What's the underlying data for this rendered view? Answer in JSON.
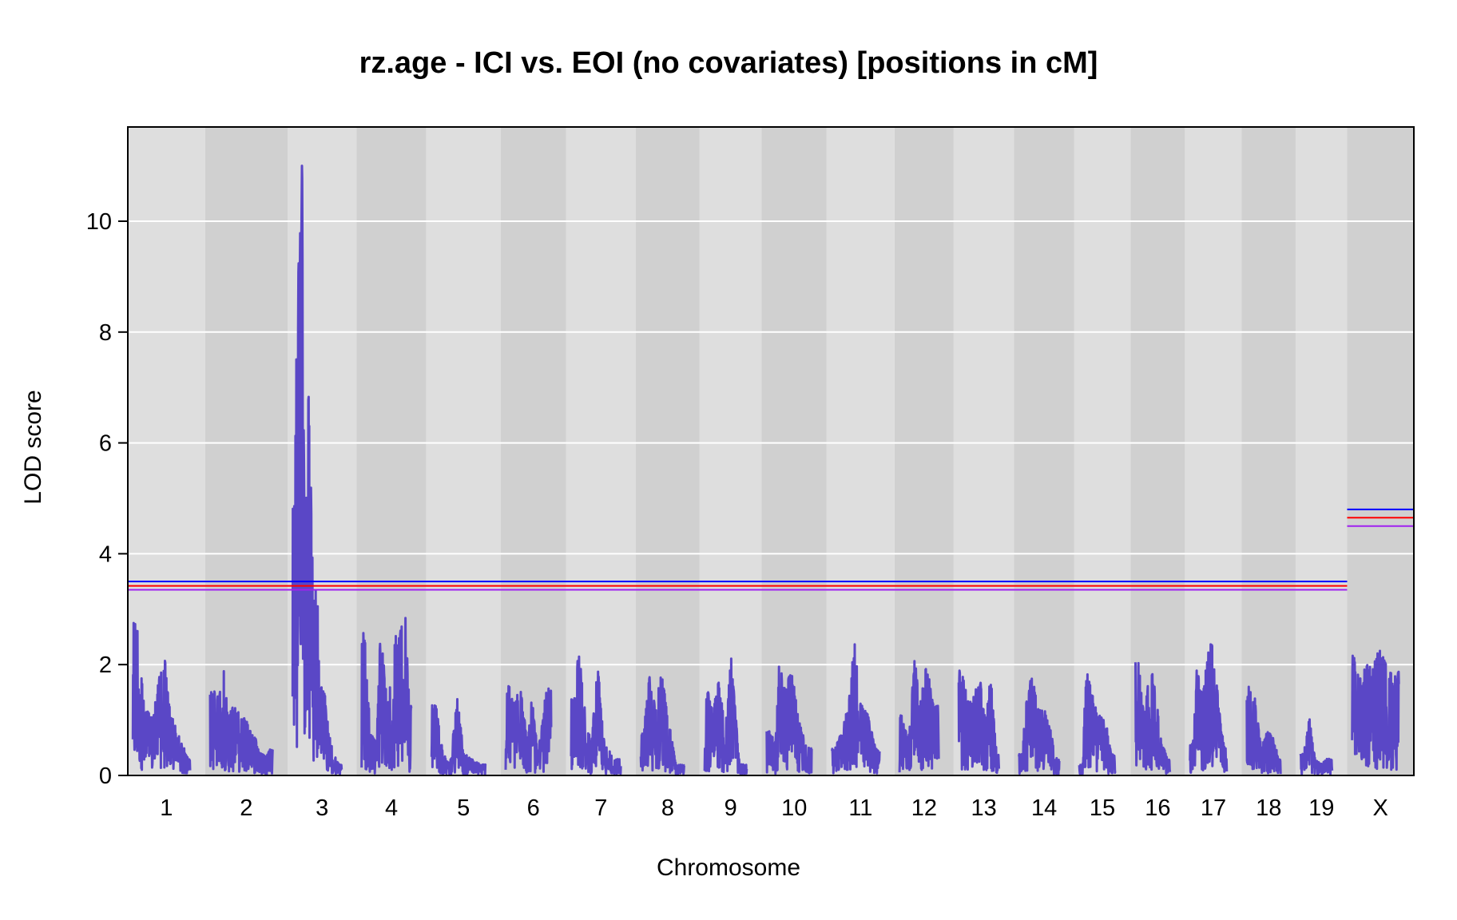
{
  "chart_data": {
    "type": "line",
    "title": "rz.age - ICI vs. EOI (no covariates) [positions in cM]",
    "xlabel": "Chromosome",
    "ylabel": "LOD score",
    "ylim": [
      0,
      11.7
    ],
    "yticks": [
      0,
      2,
      4,
      6,
      8,
      10
    ],
    "grid": "horizontal at y ticks",
    "background": "alternating gray bands per chromosome",
    "colors": {
      "lod_curve": "#5a47c6",
      "band_light": "#dedede",
      "band_dark": "#d0d0d0",
      "grid": "#ffffff",
      "threshold_blue": "#0000ff",
      "threshold_red": "#ff0000",
      "threshold_purple": "#9f20f0"
    },
    "chromosomes": [
      "1",
      "2",
      "3",
      "4",
      "5",
      "6",
      "7",
      "8",
      "9",
      "10",
      "11",
      "12",
      "13",
      "14",
      "15",
      "16",
      "17",
      "18",
      "19",
      "X"
    ],
    "chromosome_lengths_cM": [
      98,
      107,
      84,
      85,
      93,
      78,
      85,
      75,
      72,
      77,
      82,
      67,
      69,
      69,
      62,
      59,
      63,
      58,
      54,
      80
    ],
    "series": [
      {
        "label_by_chromosome": [
          {
            "chr": "1",
            "peaks": [
              [
                3,
                2.8
              ],
              [
                8,
                2.9
              ],
              [
                12,
                2.5
              ],
              [
                20,
                1.2
              ],
              [
                35,
                1.1
              ],
              [
                48,
                2.0
              ],
              [
                55,
                2.1
              ],
              [
                62,
                1.3
              ],
              [
                75,
                0.8
              ],
              [
                88,
                0.5
              ],
              [
                95,
                0.3
              ]
            ]
          },
          {
            "chr": "2",
            "peaks": [
              [
                5,
                1.7
              ],
              [
                15,
                1.4
              ],
              [
                22,
                2.3
              ],
              [
                30,
                1.1
              ],
              [
                42,
                1.3
              ],
              [
                55,
                1.1
              ],
              [
                65,
                1.0
              ],
              [
                75,
                0.8
              ],
              [
                85,
                0.4
              ],
              [
                98,
                0.4
              ],
              [
                104,
                0.5
              ]
            ]
          },
          {
            "chr": "3",
            "peaks": [
              [
                2,
                5.0
              ],
              [
                6,
                7.7
              ],
              [
                10,
                9.4
              ],
              [
                14,
                10.9
              ],
              [
                16,
                11.2
              ],
              [
                18,
                10.5
              ],
              [
                20,
                9.4
              ],
              [
                24,
                8.0
              ],
              [
                28,
                6.7
              ],
              [
                32,
                5.0
              ],
              [
                36,
                3.3
              ],
              [
                42,
                3.5
              ],
              [
                46,
                1.8
              ],
              [
                50,
                1.6
              ],
              [
                55,
                1.5
              ],
              [
                62,
                0.8
              ],
              [
                70,
                0.4
              ],
              [
                80,
                0.2
              ]
            ]
          },
          {
            "chr": "4",
            "peaks": [
              [
                5,
                2.6
              ],
              [
                15,
                0.8
              ],
              [
                25,
                0.6
              ],
              [
                32,
                2.6
              ],
              [
                45,
                1.3
              ],
              [
                55,
                2.4
              ],
              [
                62,
                2.7
              ],
              [
                68,
                2.9
              ],
              [
                75,
                2.9
              ],
              [
                82,
                1.3
              ]
            ]
          },
          {
            "chr": "5",
            "peaks": [
              [
                8,
                1.3
              ],
              [
                20,
                0.4
              ],
              [
                32,
                0.2
              ],
              [
                45,
                1.5
              ],
              [
                55,
                0.4
              ],
              [
                70,
                0.3
              ],
              [
                85,
                0.2
              ]
            ]
          },
          {
            "chr": "6",
            "peaks": [
              [
                5,
                1.7
              ],
              [
                15,
                1.3
              ],
              [
                25,
                1.7
              ],
              [
                38,
                0.6
              ],
              [
                45,
                1.5
              ],
              [
                55,
                0.4
              ],
              [
                70,
                1.6
              ]
            ]
          },
          {
            "chr": "7",
            "peaks": [
              [
                8,
                1.4
              ],
              [
                12,
                2.5
              ],
              [
                25,
                1.0
              ],
              [
                35,
                0.6
              ],
              [
                45,
                2.1
              ],
              [
                55,
                0.7
              ],
              [
                72,
                0.3
              ]
            ]
          },
          {
            "chr": "8",
            "peaks": [
              [
                5,
                0.8
              ],
              [
                15,
                1.9
              ],
              [
                25,
                1.2
              ],
              [
                35,
                1.9
              ],
              [
                48,
                1.0
              ],
              [
                60,
                0.2
              ]
            ]
          },
          {
            "chr": "9",
            "peaks": [
              [
                5,
                1.6
              ],
              [
                15,
                1.2
              ],
              [
                25,
                1.8
              ],
              [
                35,
                0.8
              ],
              [
                45,
                2.2
              ],
              [
                60,
                0.2
              ]
            ]
          },
          {
            "chr": "10",
            "peaks": [
              [
                5,
                0.8
              ],
              [
                15,
                0.6
              ],
              [
                22,
                2.2
              ],
              [
                32,
                1.5
              ],
              [
                42,
                2.0
              ],
              [
                55,
                1.0
              ],
              [
                70,
                0.5
              ]
            ]
          },
          {
            "chr": "11",
            "peaks": [
              [
                5,
                0.5
              ],
              [
                18,
                0.8
              ],
              [
                30,
                1.4
              ],
              [
                40,
                2.6
              ],
              [
                50,
                1.3
              ],
              [
                60,
                1.2
              ],
              [
                75,
                0.5
              ]
            ]
          },
          {
            "chr": "12",
            "peaks": [
              [
                5,
                1.1
              ],
              [
                15,
                0.6
              ],
              [
                25,
                2.2
              ],
              [
                35,
                1.3
              ],
              [
                45,
                2.2
              ],
              [
                58,
                1.3
              ]
            ]
          },
          {
            "chr": "13",
            "peaks": [
              [
                5,
                1.9
              ],
              [
                15,
                1.4
              ],
              [
                25,
                1.4
              ],
              [
                35,
                1.9
              ],
              [
                45,
                1.1
              ],
              [
                55,
                1.8
              ],
              [
                65,
                0.4
              ]
            ]
          },
          {
            "chr": "14",
            "peaks": [
              [
                5,
                0.4
              ],
              [
                12,
                1.3
              ],
              [
                22,
                1.9
              ],
              [
                32,
                1.2
              ],
              [
                45,
                1.2
              ],
              [
                55,
                0.8
              ],
              [
                65,
                0.3
              ]
            ]
          },
          {
            "chr": "15",
            "peaks": [
              [
                5,
                0.2
              ],
              [
                12,
                2.0
              ],
              [
                22,
                1.5
              ],
              [
                32,
                1.1
              ],
              [
                45,
                1.0
              ],
              [
                55,
                0.4
              ]
            ]
          },
          {
            "chr": "16",
            "peaks": [
              [
                5,
                2.1
              ],
              [
                15,
                1.0
              ],
              [
                25,
                2.2
              ],
              [
                35,
                1.5
              ],
              [
                45,
                0.6
              ],
              [
                55,
                0.3
              ]
            ]
          },
          {
            "chr": "17",
            "peaks": [
              [
                5,
                0.6
              ],
              [
                12,
                2.0
              ],
              [
                22,
                1.4
              ],
              [
                32,
                2.6
              ],
              [
                42,
                2.2
              ],
              [
                52,
                1.0
              ],
              [
                60,
                0.5
              ]
            ]
          },
          {
            "chr": "18",
            "peaks": [
              [
                5,
                1.6
              ],
              [
                15,
                1.4
              ],
              [
                25,
                0.5
              ],
              [
                35,
                0.8
              ],
              [
                45,
                0.7
              ],
              [
                55,
                0.3
              ]
            ]
          },
          {
            "chr": "19",
            "peaks": [
              [
                5,
                0.4
              ],
              [
                15,
                1.1
              ],
              [
                25,
                0.3
              ],
              [
                35,
                0.2
              ],
              [
                45,
                0.3
              ],
              [
                52,
                0.3
              ]
            ]
          },
          {
            "chr": "X",
            "peaks": [
              [
                3,
                2.2
              ],
              [
                10,
                2.0
              ],
              [
                18,
                1.8
              ],
              [
                26,
                2.1
              ],
              [
                34,
                1.9
              ],
              [
                42,
                2.2
              ],
              [
                50,
                2.3
              ],
              [
                58,
                2.0
              ],
              [
                66,
                1.9
              ],
              [
                74,
                1.8
              ],
              [
                79,
                1.9
              ]
            ]
          }
        ]
      }
    ],
    "thresholds": {
      "autosomes": [
        {
          "color": "blue",
          "value": 3.5
        },
        {
          "color": "red",
          "value": 3.42
        },
        {
          "color": "purple",
          "value": 3.35
        }
      ],
      "X": [
        {
          "color": "blue",
          "value": 4.8
        },
        {
          "color": "red",
          "value": 4.65
        },
        {
          "color": "purple",
          "value": 4.5
        }
      ]
    }
  }
}
